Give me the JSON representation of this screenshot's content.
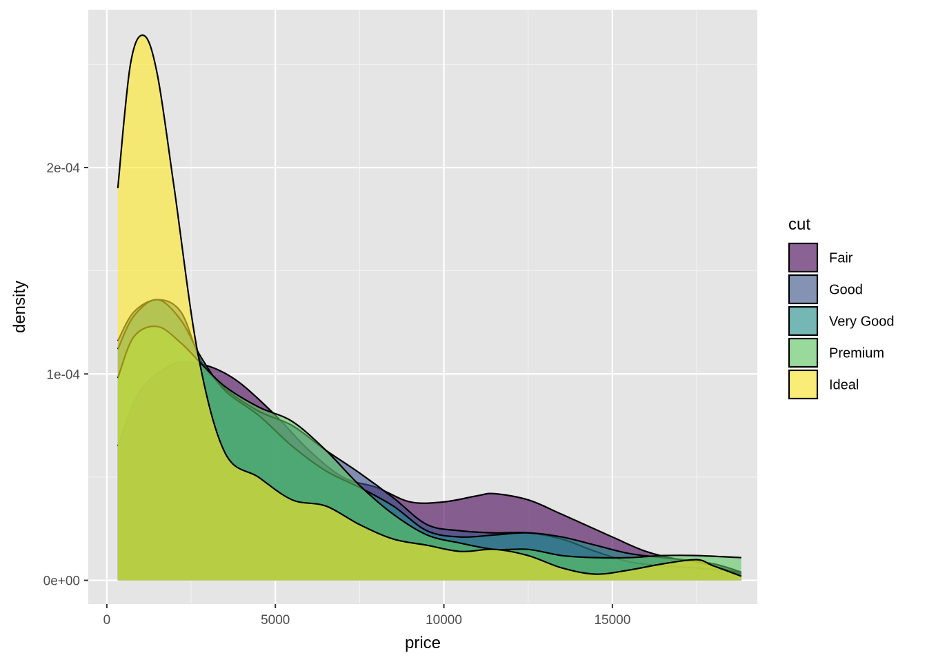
{
  "chart_data": {
    "type": "area",
    "subtype": "density",
    "xlabel": "price",
    "ylabel": "density",
    "xlim": [
      -550,
      19300
    ],
    "ylim": [
      -1.15e-05,
      0.0002765
    ],
    "x_ticks": [
      0,
      5000,
      10000,
      15000
    ],
    "x_tick_labels": [
      "0",
      "5000",
      "10000",
      "15000"
    ],
    "y_ticks": [
      0,
      0.0001,
      0.0002
    ],
    "y_tick_labels": [
      "0e+00",
      "1e-04",
      "2e-04"
    ],
    "grid": true,
    "legend": {
      "title": "cut",
      "position": "right"
    },
    "fill_opacity": 0.6,
    "series": [
      {
        "name": "Fair",
        "color": "#440154",
        "x": [
          326,
          1000,
          2000,
          2700,
          3300,
          4000,
          5000,
          6000,
          7000,
          8000,
          9000,
          10000,
          11000,
          11500,
          12500,
          13500,
          15000,
          16000,
          17000,
          18000,
          18823
        ],
        "values": [
          6.5e-05,
          9.2e-05,
          0.000105,
          0.000105,
          0.000102,
          9.5e-05,
          8e-05,
          6.3e-05,
          5e-05,
          4.5e-05,
          3.8e-05,
          3.8e-05,
          4.1e-05,
          4.2e-05,
          3.9e-05,
          3.2e-05,
          2.1e-05,
          1.4e-05,
          1e-05,
          8e-06,
          4e-06
        ]
      },
      {
        "name": "Good",
        "color": "#3B528B",
        "x": [
          326,
          800,
          1500,
          2200,
          2800,
          3500,
          4500,
          5500,
          6500,
          7500,
          8500,
          9500,
          10500,
          11500,
          12500,
          13500,
          14500,
          15500,
          16500,
          17500,
          18823
        ],
        "values": [
          0.000116,
          0.00013,
          0.000136,
          0.00013,
          0.000106,
          9.3e-05,
          8.2e-05,
          7.5e-05,
          6.3e-05,
          5.2e-05,
          4e-05,
          2.7e-05,
          2.4e-05,
          2.3e-05,
          2.3e-05,
          2e-05,
          1.4e-05,
          9e-06,
          7e-06,
          6e-06,
          4e-06
        ]
      },
      {
        "name": "Very Good",
        "color": "#21908C",
        "x": [
          326,
          800,
          1500,
          2200,
          2800,
          3500,
          4500,
          5500,
          6500,
          7500,
          8500,
          9500,
          10500,
          11500,
          12500,
          13500,
          14500,
          15500,
          16500,
          17500,
          18823
        ],
        "values": [
          0.000112,
          0.000128,
          0.000136,
          0.000126,
          0.000108,
          9.2e-05,
          8e-05,
          6.5e-05,
          5.3e-05,
          4.5e-05,
          3.6e-05,
          2.4e-05,
          2.1e-05,
          2.2e-05,
          2.3e-05,
          2.1e-05,
          1.7e-05,
          1.3e-05,
          1.1e-05,
          9e-06,
          3e-06
        ]
      },
      {
        "name": "Premium",
        "color": "#5DC863",
        "x": [
          326,
          800,
          1500,
          2200,
          2800,
          3500,
          4500,
          5500,
          6500,
          7500,
          8500,
          9500,
          10500,
          11500,
          12500,
          13500,
          14500,
          15500,
          16500,
          17500,
          18823
        ],
        "values": [
          9.8e-05,
          0.000118,
          0.000123,
          0.000115,
          0.000105,
          9.4e-05,
          8.4e-05,
          7.7e-05,
          6.3e-05,
          4.6e-05,
          3.2e-05,
          2.2e-05,
          1.8e-05,
          1.5e-05,
          1.5e-05,
          1.2e-05,
          1.1e-05,
          1.1e-05,
          1.2e-05,
          1.2e-05,
          1.1e-05
        ]
      },
      {
        "name": "Ideal",
        "color": "#FDE725",
        "x": [
          326,
          700,
          1100,
          1500,
          2000,
          2700,
          3500,
          4500,
          5500,
          6500,
          7500,
          8500,
          9500,
          10500,
          11500,
          12500,
          13500,
          14500,
          15500,
          16500,
          17500,
          18000,
          18823
        ],
        "values": [
          0.00019,
          0.00025,
          0.000264,
          0.000245,
          0.00019,
          0.00011,
          6.2e-05,
          5e-05,
          3.9e-05,
          3.6e-05,
          2.7e-05,
          2e-05,
          1.7e-05,
          1.4e-05,
          1.5e-05,
          1.2e-05,
          6e-06,
          3e-06,
          5e-06,
          8e-06,
          1e-05,
          7e-06,
          2e-06
        ]
      }
    ]
  }
}
